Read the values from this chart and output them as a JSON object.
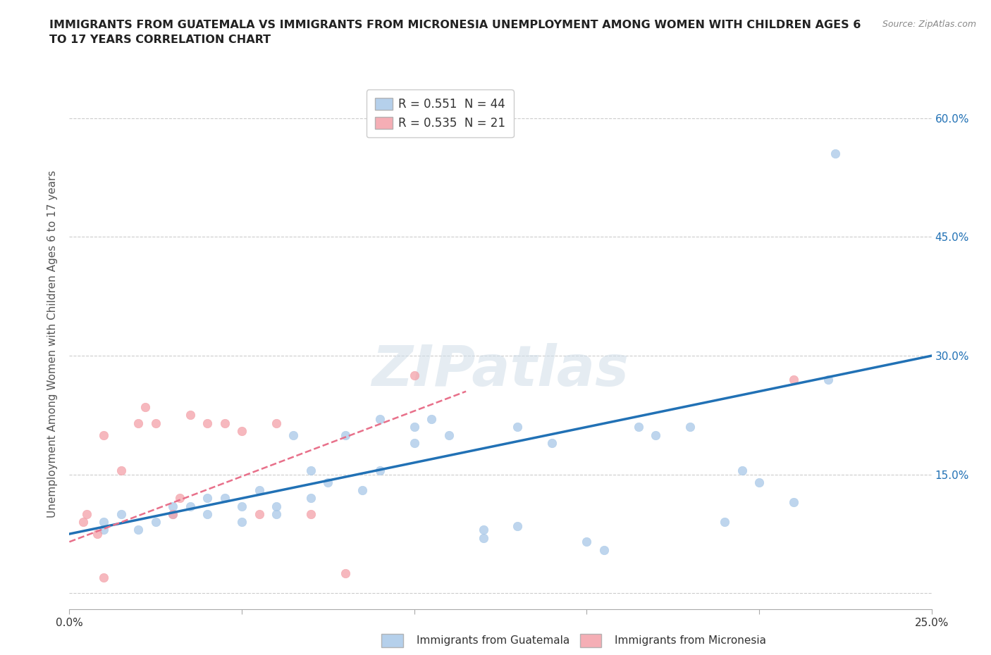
{
  "title": "IMMIGRANTS FROM GUATEMALA VS IMMIGRANTS FROM MICRONESIA UNEMPLOYMENT AMONG WOMEN WITH CHILDREN AGES 6\nTO 17 YEARS CORRELATION CHART",
  "source": "Source: ZipAtlas.com",
  "ylabel": "Unemployment Among Women with Children Ages 6 to 17 years",
  "xlim": [
    0.0,
    0.25
  ],
  "ylim": [
    -0.02,
    0.65
  ],
  "yticks": [
    0.0,
    0.15,
    0.3,
    0.45,
    0.6
  ],
  "ytick_labels_right": [
    "",
    "15.0%",
    "30.0%",
    "45.0%",
    "60.0%"
  ],
  "xtick_positions": [
    0.0,
    0.05,
    0.1,
    0.15,
    0.2,
    0.25
  ],
  "grid_color": "#cccccc",
  "background_color": "#ffffff",
  "watermark": "ZIPatlas",
  "guatemala_color": "#a8c8e8",
  "micronesia_color": "#f4a0a8",
  "guatemala_line_color": "#2171b5",
  "micronesia_line_color": "#e8708a",
  "guatemala_scatter": [
    [
      0.01,
      0.08
    ],
    [
      0.01,
      0.09
    ],
    [
      0.015,
      0.1
    ],
    [
      0.02,
      0.08
    ],
    [
      0.025,
      0.09
    ],
    [
      0.03,
      0.11
    ],
    [
      0.03,
      0.1
    ],
    [
      0.035,
      0.11
    ],
    [
      0.04,
      0.12
    ],
    [
      0.04,
      0.1
    ],
    [
      0.045,
      0.12
    ],
    [
      0.05,
      0.09
    ],
    [
      0.05,
      0.11
    ],
    [
      0.055,
      0.13
    ],
    [
      0.06,
      0.11
    ],
    [
      0.06,
      0.1
    ],
    [
      0.065,
      0.2
    ],
    [
      0.07,
      0.155
    ],
    [
      0.07,
      0.12
    ],
    [
      0.075,
      0.14
    ],
    [
      0.08,
      0.2
    ],
    [
      0.085,
      0.13
    ],
    [
      0.09,
      0.155
    ],
    [
      0.09,
      0.22
    ],
    [
      0.1,
      0.21
    ],
    [
      0.1,
      0.19
    ],
    [
      0.105,
      0.22
    ],
    [
      0.11,
      0.2
    ],
    [
      0.12,
      0.07
    ],
    [
      0.12,
      0.08
    ],
    [
      0.13,
      0.085
    ],
    [
      0.13,
      0.21
    ],
    [
      0.14,
      0.19
    ],
    [
      0.15,
      0.065
    ],
    [
      0.155,
      0.055
    ],
    [
      0.165,
      0.21
    ],
    [
      0.17,
      0.2
    ],
    [
      0.18,
      0.21
    ],
    [
      0.19,
      0.09
    ],
    [
      0.195,
      0.155
    ],
    [
      0.2,
      0.14
    ],
    [
      0.21,
      0.115
    ],
    [
      0.22,
      0.27
    ],
    [
      0.222,
      0.555
    ]
  ],
  "micronesia_scatter": [
    [
      0.004,
      0.09
    ],
    [
      0.005,
      0.1
    ],
    [
      0.008,
      0.075
    ],
    [
      0.01,
      0.2
    ],
    [
      0.015,
      0.155
    ],
    [
      0.02,
      0.215
    ],
    [
      0.022,
      0.235
    ],
    [
      0.025,
      0.215
    ],
    [
      0.03,
      0.1
    ],
    [
      0.032,
      0.12
    ],
    [
      0.035,
      0.225
    ],
    [
      0.04,
      0.215
    ],
    [
      0.045,
      0.215
    ],
    [
      0.05,
      0.205
    ],
    [
      0.055,
      0.1
    ],
    [
      0.06,
      0.215
    ],
    [
      0.07,
      0.1
    ],
    [
      0.08,
      0.025
    ],
    [
      0.1,
      0.275
    ],
    [
      0.21,
      0.27
    ],
    [
      0.01,
      0.02
    ]
  ],
  "guatemala_trendline": [
    [
      0.0,
      0.075
    ],
    [
      0.25,
      0.3
    ]
  ],
  "micronesia_trendline": [
    [
      0.0,
      0.065
    ],
    [
      0.115,
      0.255
    ]
  ]
}
